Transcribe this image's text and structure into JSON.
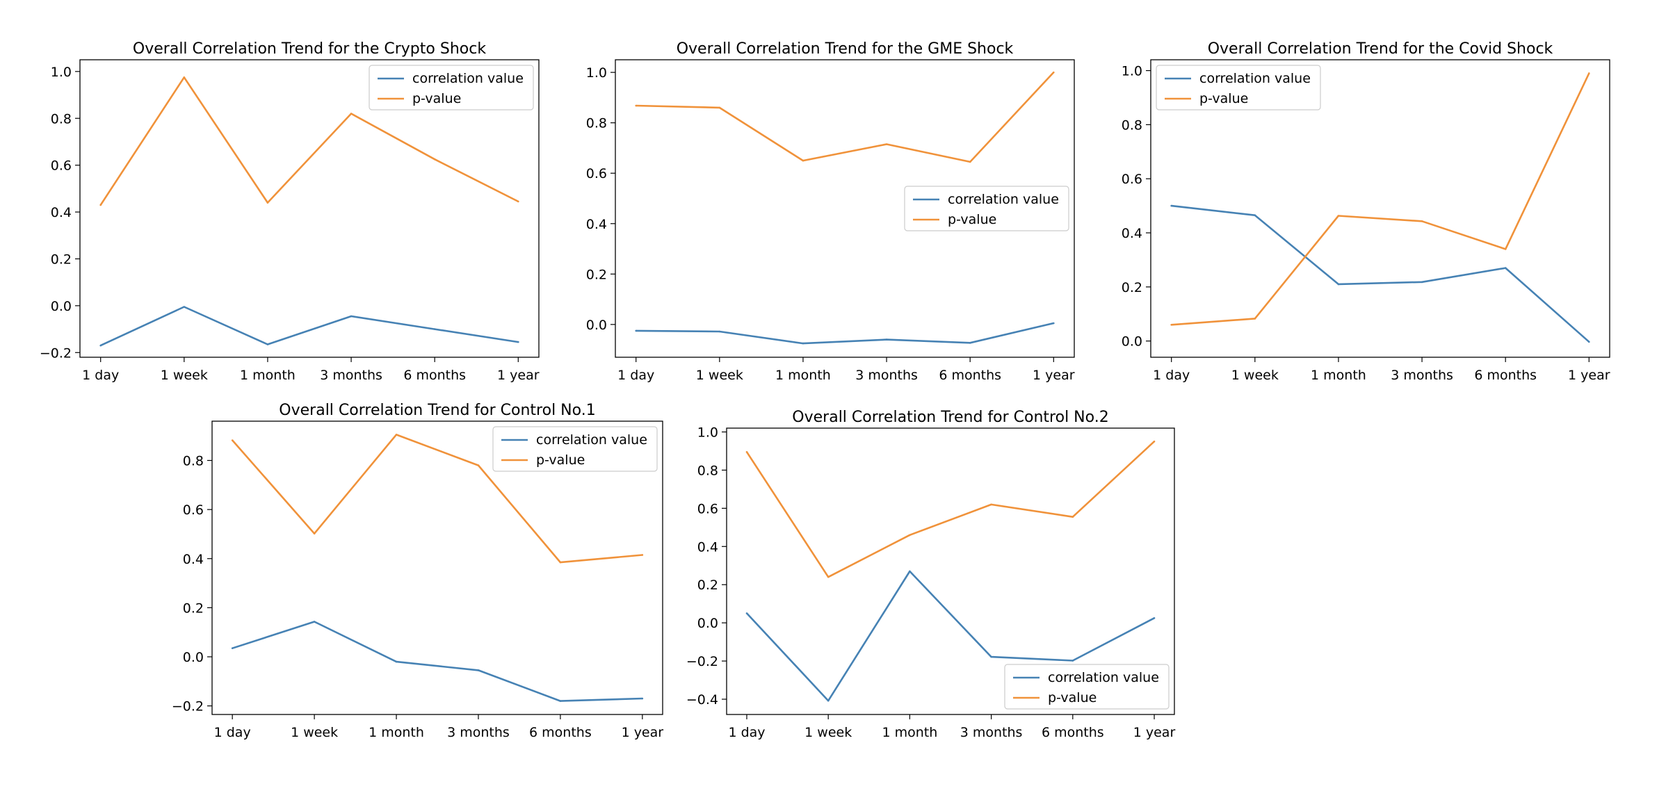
{
  "colors": {
    "correlation": "#4682b4",
    "pvalue": "#f0923a"
  },
  "chart_data": [
    {
      "type": "line",
      "title": "Overall Correlation Trend for the Crypto Shock",
      "categories": [
        "1 day",
        "1 week",
        "1 month",
        "3 months",
        "6 months",
        "1 year"
      ],
      "series": [
        {
          "name": "correlation value",
          "values": [
            -0.17,
            -0.005,
            -0.165,
            -0.045,
            -0.1,
            -0.155
          ]
        },
        {
          "name": "p-value",
          "values": [
            0.43,
            0.975,
            0.44,
            0.82,
            0.625,
            0.445
          ]
        }
      ],
      "ylim": [
        -0.22,
        1.05
      ],
      "yticks": [
        "1.0",
        "0.8",
        "0.6",
        "0.4",
        "0.2",
        "0.0",
        "−0.2"
      ],
      "ytick_values": [
        1.0,
        0.8,
        0.6,
        0.4,
        0.2,
        0.0,
        -0.2
      ],
      "legend": "top-right",
      "grid": false
    },
    {
      "type": "line",
      "title": "Overall Correlation Trend for the GME Shock",
      "categories": [
        "1 day",
        "1 week",
        "1 month",
        "3 months",
        "6 months",
        "1 year"
      ],
      "series": [
        {
          "name": "correlation value",
          "values": [
            -0.025,
            -0.028,
            -0.075,
            -0.06,
            -0.073,
            0.005
          ]
        },
        {
          "name": "p-value",
          "values": [
            0.868,
            0.86,
            0.65,
            0.715,
            0.645,
            1.0
          ]
        }
      ],
      "ylim": [
        -0.13,
        1.05
      ],
      "yticks": [
        "1.0",
        "0.8",
        "0.6",
        "0.4",
        "0.2",
        "0.0"
      ],
      "ytick_values": [
        1.0,
        0.8,
        0.6,
        0.4,
        0.2,
        0.0
      ],
      "legend": "center-right",
      "grid": false
    },
    {
      "type": "line",
      "title": "Overall Correlation Trend for the Covid Shock",
      "categories": [
        "1 day",
        "1 week",
        "1 month",
        "3 months",
        "6 months",
        "1 year"
      ],
      "series": [
        {
          "name": "correlation value",
          "values": [
            0.5,
            0.465,
            0.21,
            0.218,
            0.27,
            -0.003
          ]
        },
        {
          "name": "p-value",
          "values": [
            0.06,
            0.083,
            0.463,
            0.443,
            0.34,
            0.99
          ]
        }
      ],
      "ylim": [
        -0.06,
        1.04
      ],
      "yticks": [
        "1.0",
        "0.8",
        "0.6",
        "0.4",
        "0.2",
        "0.0"
      ],
      "ytick_values": [
        1.0,
        0.8,
        0.6,
        0.4,
        0.2,
        0.0
      ],
      "legend": "top-left",
      "grid": false
    },
    {
      "type": "line",
      "title": "Overall Correlation Trend for Control No.1",
      "categories": [
        "1 day",
        "1 week",
        "1 month",
        "3 months",
        "6 months",
        "1 year"
      ],
      "series": [
        {
          "name": "correlation value",
          "values": [
            0.035,
            0.143,
            -0.02,
            -0.055,
            -0.18,
            -0.17
          ]
        },
        {
          "name": "p-value",
          "values": [
            0.882,
            0.502,
            0.905,
            0.78,
            0.385,
            0.415
          ]
        }
      ],
      "ylim": [
        -0.235,
        0.96
      ],
      "yticks": [
        "0.8",
        "0.6",
        "0.4",
        "0.2",
        "0.0",
        "−0.2"
      ],
      "ytick_values": [
        0.8,
        0.6,
        0.4,
        0.2,
        0.0,
        -0.2
      ],
      "legend": "top-right",
      "grid": false
    },
    {
      "type": "line",
      "title": "Overall Correlation Trend for Control No.2",
      "categories": [
        "1 day",
        "1 week",
        "1 month",
        "3 months",
        "6 months",
        "1 year"
      ],
      "series": [
        {
          "name": "correlation value",
          "values": [
            0.05,
            -0.408,
            0.27,
            -0.178,
            -0.198,
            0.025
          ]
        },
        {
          "name": "p-value",
          "values": [
            0.895,
            0.24,
            0.46,
            0.62,
            0.555,
            0.95
          ]
        }
      ],
      "ylim": [
        -0.48,
        1.02
      ],
      "yticks": [
        "1.0",
        "0.8",
        "0.6",
        "0.4",
        "0.2",
        "0.0",
        "−0.2",
        "−0.4"
      ],
      "ytick_values": [
        1.0,
        0.8,
        0.6,
        0.4,
        0.2,
        0.0,
        -0.2,
        -0.4
      ],
      "legend": "bottom-right",
      "grid": false
    }
  ]
}
